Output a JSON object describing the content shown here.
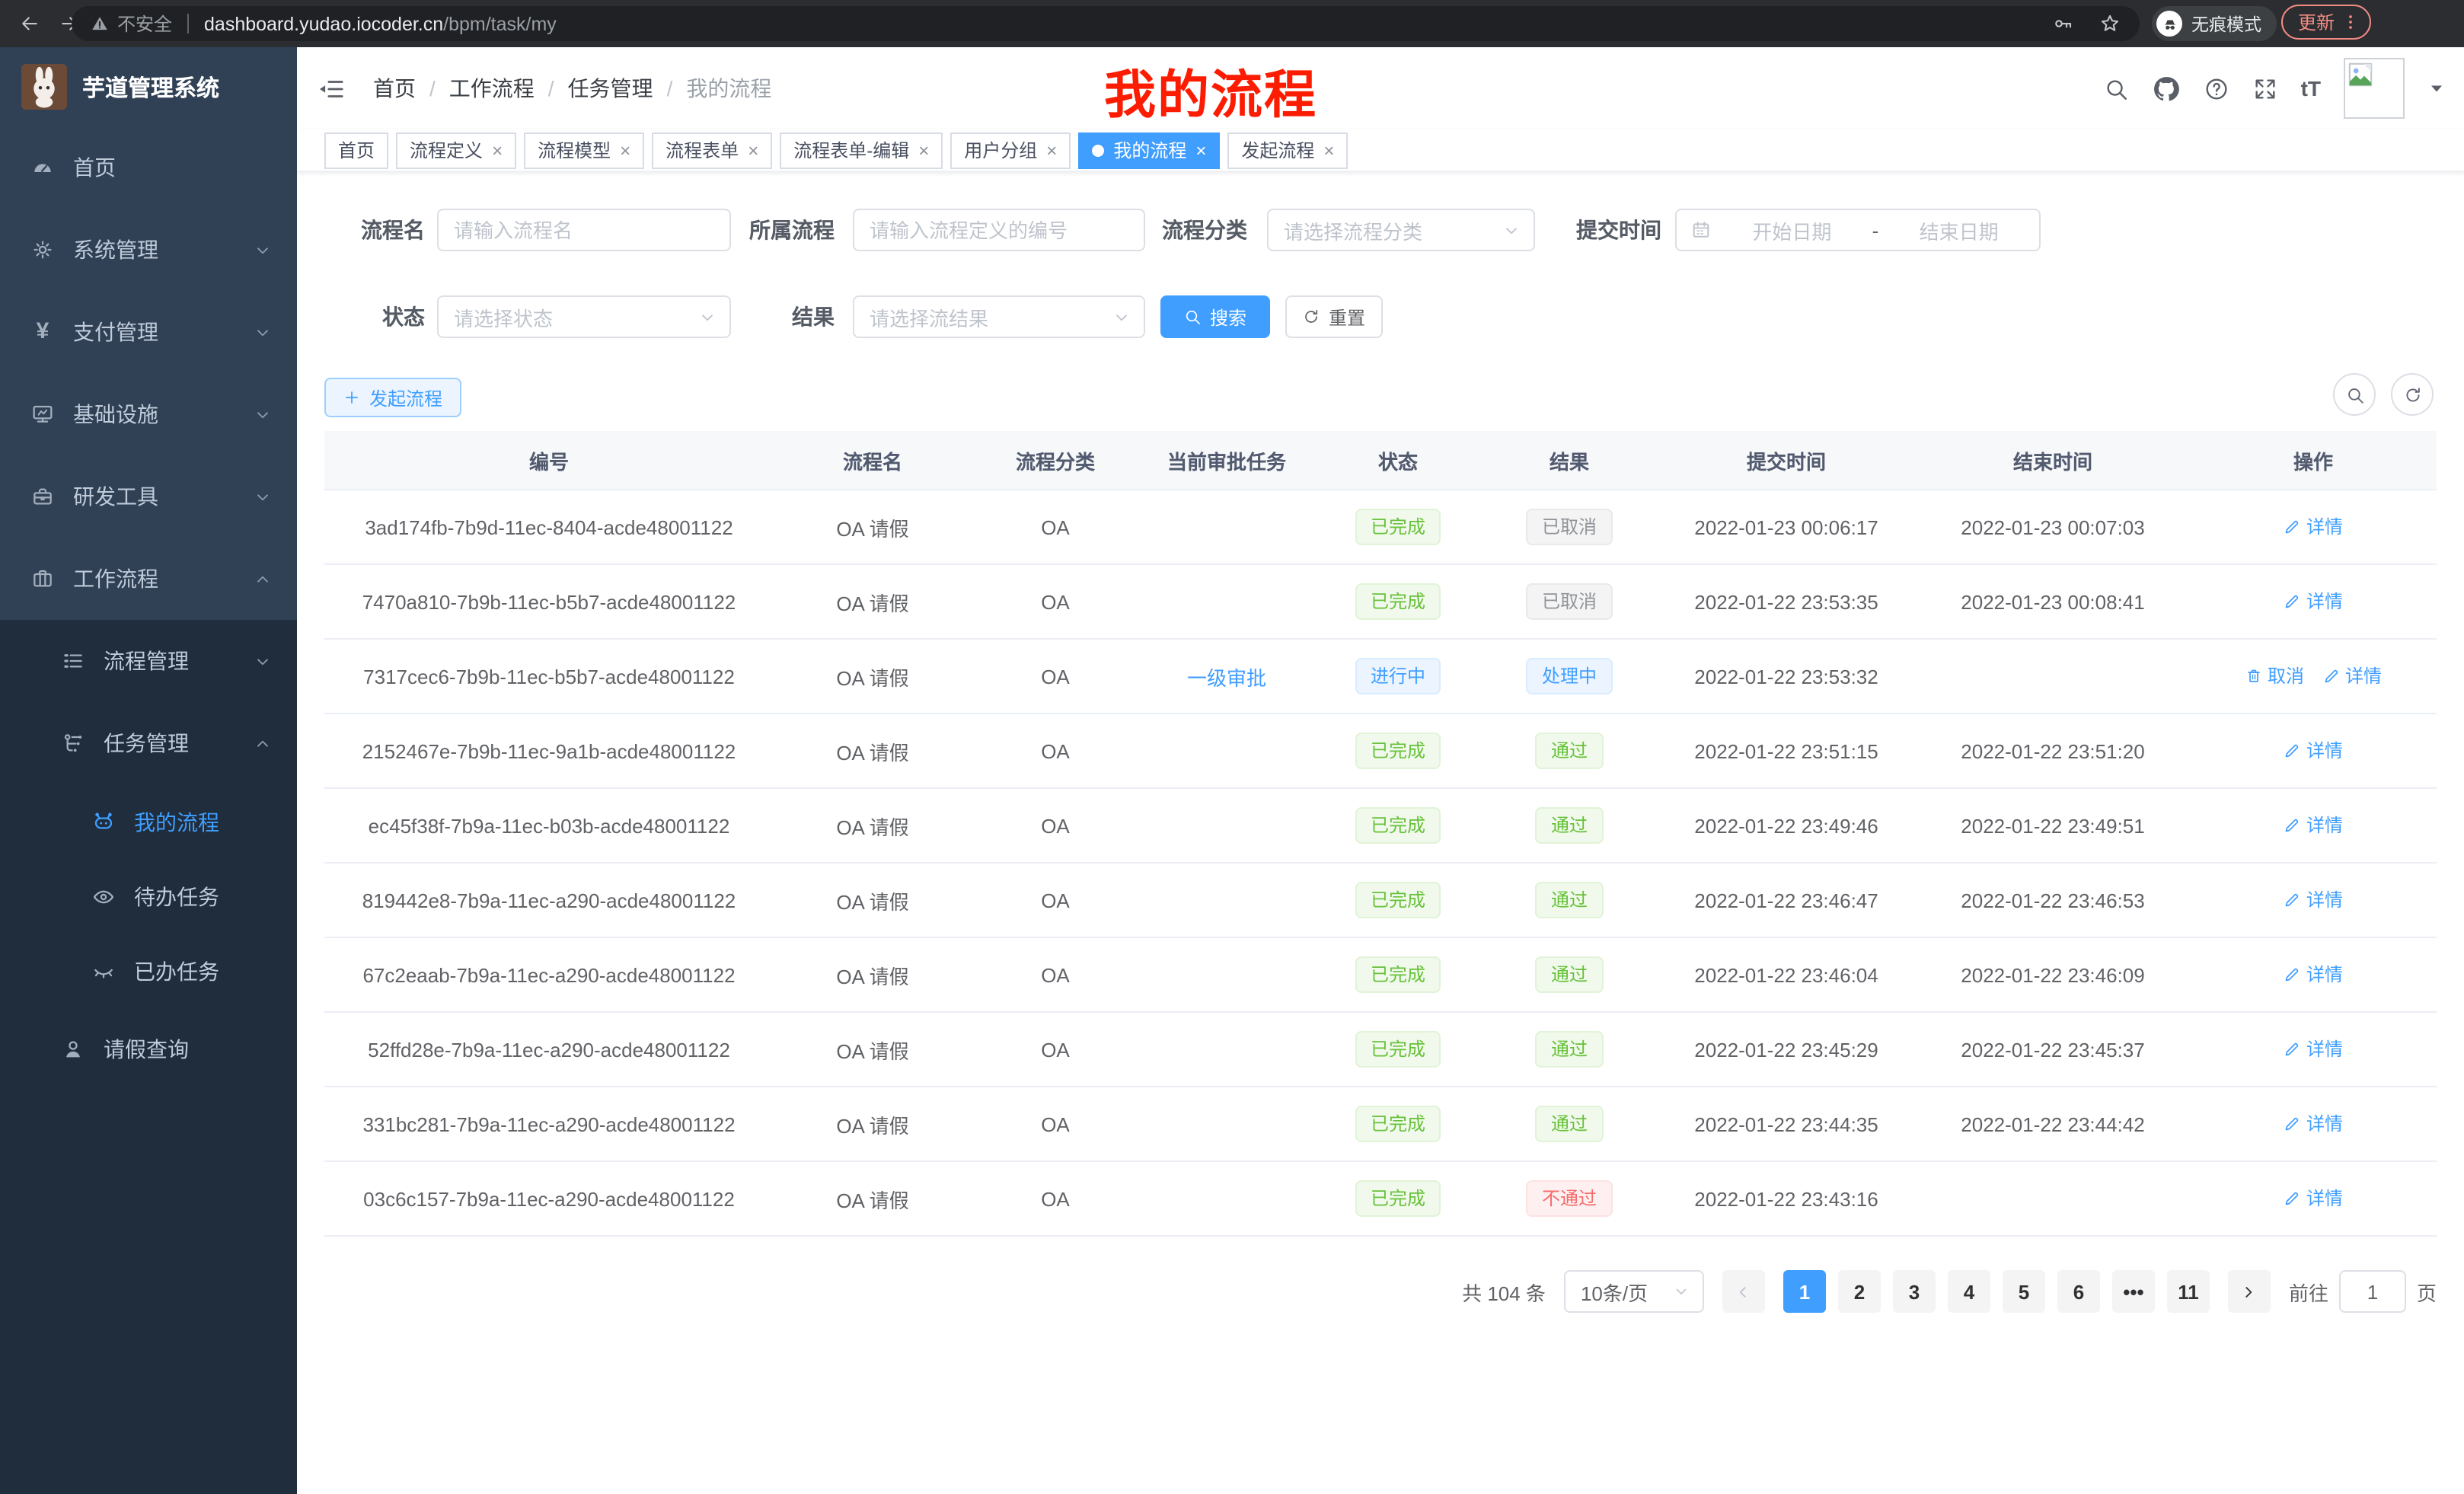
{
  "browser": {
    "security_label": "不安全",
    "url_host": "dashboard.yudao.iocoder.cn",
    "url_path": "/bpm/task/my",
    "incognito_label": "无痕模式",
    "update_label": "更新"
  },
  "sidebar": {
    "app_title": "芋道管理系统",
    "items": [
      {
        "key": "home",
        "label": "首页",
        "icon": "dashboard-icon",
        "level": 1,
        "section": "top",
        "chevron": "",
        "active": false
      },
      {
        "key": "system",
        "label": "系统管理",
        "icon": "gear-icon",
        "level": 1,
        "section": "top",
        "chevron": "down",
        "active": false
      },
      {
        "key": "payment",
        "label": "支付管理",
        "icon": "yen-icon",
        "level": 1,
        "section": "top",
        "chevron": "down",
        "active": false
      },
      {
        "key": "infrastructure",
        "label": "基础设施",
        "icon": "monitor-icon",
        "level": 1,
        "section": "top",
        "chevron": "down",
        "active": false
      },
      {
        "key": "devtools",
        "label": "研发工具",
        "icon": "toolbox-icon",
        "level": 1,
        "section": "top",
        "chevron": "down",
        "active": false
      },
      {
        "key": "workflow",
        "label": "工作流程",
        "icon": "briefcase-icon",
        "level": 1,
        "section": "top",
        "chevron": "up",
        "active": false
      },
      {
        "key": "process-mgmt",
        "label": "流程管理",
        "icon": "list-icon",
        "level": 2,
        "section": "sub",
        "chevron": "down",
        "active": false
      },
      {
        "key": "task-mgmt",
        "label": "任务管理",
        "icon": "flow-icon",
        "level": 2,
        "section": "sub",
        "chevron": "up",
        "active": false
      },
      {
        "key": "my-process",
        "label": "我的流程",
        "icon": "robot-icon",
        "level": 3,
        "section": "sub",
        "chevron": "",
        "active": true
      },
      {
        "key": "todo-tasks",
        "label": "待办任务",
        "icon": "eye-icon",
        "level": 3,
        "section": "sub",
        "chevron": "",
        "active": false
      },
      {
        "key": "done-tasks",
        "label": "已办任务",
        "icon": "eye-closed-icon",
        "level": 3,
        "section": "sub",
        "chevron": "",
        "active": false
      },
      {
        "key": "leave-query",
        "label": "请假查询",
        "icon": "user-icon",
        "level": 2,
        "section": "sub",
        "chevron": "",
        "active": false
      }
    ]
  },
  "header": {
    "breadcrumb": [
      "首页",
      "工作流程",
      "任务管理",
      "我的流程"
    ],
    "annotation": "我的流程"
  },
  "tabs": [
    {
      "key": "home",
      "label": "首页",
      "closable": false,
      "active": false
    },
    {
      "key": "process-definition",
      "label": "流程定义",
      "closable": true,
      "active": false
    },
    {
      "key": "process-model",
      "label": "流程模型",
      "closable": true,
      "active": false
    },
    {
      "key": "process-form",
      "label": "流程表单",
      "closable": true,
      "active": false
    },
    {
      "key": "process-form-edit",
      "label": "流程表单-编辑",
      "closable": true,
      "active": false
    },
    {
      "key": "user-group",
      "label": "用户分组",
      "closable": true,
      "active": false
    },
    {
      "key": "my-process",
      "label": "我的流程",
      "closable": true,
      "active": true
    },
    {
      "key": "start-process",
      "label": "发起流程",
      "closable": true,
      "active": false
    }
  ],
  "filters": {
    "name_label": "流程名",
    "name_placeholder": "请输入流程名",
    "definition_label": "所属流程",
    "definition_placeholder": "请输入流程定义的编号",
    "category_label": "流程分类",
    "category_placeholder": "请选择流程分类",
    "submit_time_label": "提交时间",
    "date_start_placeholder": "开始日期",
    "date_separator": "-",
    "date_end_placeholder": "结束日期",
    "status_label": "状态",
    "status_placeholder": "请选择状态",
    "result_label": "结果",
    "result_placeholder": "请选择流结果",
    "search_label": "搜索",
    "reset_label": "重置"
  },
  "toolbar": {
    "create_label": "发起流程"
  },
  "table": {
    "columns": [
      "编号",
      "流程名",
      "流程分类",
      "当前审批任务",
      "状态",
      "结果",
      "提交时间",
      "结束时间",
      "操作"
    ],
    "action_labels": {
      "detail": "详情",
      "cancel": "取消"
    },
    "rows": [
      {
        "id": "3ad174fb-7b9d-11ec-8404-acde48001122",
        "name": "OA 请假",
        "category": "OA",
        "task": "",
        "status": "已完成",
        "status_type": "success",
        "result": "已取消",
        "result_type": "info",
        "submit_time": "2022-01-23 00:06:17",
        "end_time": "2022-01-23 00:07:03",
        "actions": [
          "detail"
        ]
      },
      {
        "id": "7470a810-7b9b-11ec-b5b7-acde48001122",
        "name": "OA 请假",
        "category": "OA",
        "task": "",
        "status": "已完成",
        "status_type": "success",
        "result": "已取消",
        "result_type": "info",
        "submit_time": "2022-01-22 23:53:35",
        "end_time": "2022-01-23 00:08:41",
        "actions": [
          "detail"
        ]
      },
      {
        "id": "7317cec6-7b9b-11ec-b5b7-acde48001122",
        "name": "OA 请假",
        "category": "OA",
        "task": "一级审批",
        "status": "进行中",
        "status_type": "primary",
        "result": "处理中",
        "result_type": "primary",
        "submit_time": "2022-01-22 23:53:32",
        "end_time": "",
        "actions": [
          "cancel",
          "detail"
        ]
      },
      {
        "id": "2152467e-7b9b-11ec-9a1b-acde48001122",
        "name": "OA 请假",
        "category": "OA",
        "task": "",
        "status": "已完成",
        "status_type": "success",
        "result": "通过",
        "result_type": "success",
        "submit_time": "2022-01-22 23:51:15",
        "end_time": "2022-01-22 23:51:20",
        "actions": [
          "detail"
        ]
      },
      {
        "id": "ec45f38f-7b9a-11ec-b03b-acde48001122",
        "name": "OA 请假",
        "category": "OA",
        "task": "",
        "status": "已完成",
        "status_type": "success",
        "result": "通过",
        "result_type": "success",
        "submit_time": "2022-01-22 23:49:46",
        "end_time": "2022-01-22 23:49:51",
        "actions": [
          "detail"
        ]
      },
      {
        "id": "819442e8-7b9a-11ec-a290-acde48001122",
        "name": "OA 请假",
        "category": "OA",
        "task": "",
        "status": "已完成",
        "status_type": "success",
        "result": "通过",
        "result_type": "success",
        "submit_time": "2022-01-22 23:46:47",
        "end_time": "2022-01-22 23:46:53",
        "actions": [
          "detail"
        ]
      },
      {
        "id": "67c2eaab-7b9a-11ec-a290-acde48001122",
        "name": "OA 请假",
        "category": "OA",
        "task": "",
        "status": "已完成",
        "status_type": "success",
        "result": "通过",
        "result_type": "success",
        "submit_time": "2022-01-22 23:46:04",
        "end_time": "2022-01-22 23:46:09",
        "actions": [
          "detail"
        ]
      },
      {
        "id": "52ffd28e-7b9a-11ec-a290-acde48001122",
        "name": "OA 请假",
        "category": "OA",
        "task": "",
        "status": "已完成",
        "status_type": "success",
        "result": "通过",
        "result_type": "success",
        "submit_time": "2022-01-22 23:45:29",
        "end_time": "2022-01-22 23:45:37",
        "actions": [
          "detail"
        ]
      },
      {
        "id": "331bc281-7b9a-11ec-a290-acde48001122",
        "name": "OA 请假",
        "category": "OA",
        "task": "",
        "status": "已完成",
        "status_type": "success",
        "result": "通过",
        "result_type": "success",
        "submit_time": "2022-01-22 23:44:35",
        "end_time": "2022-01-22 23:44:42",
        "actions": [
          "detail"
        ]
      },
      {
        "id": "03c6c157-7b9a-11ec-a290-acde48001122",
        "name": "OA 请假",
        "category": "OA",
        "task": "",
        "status": "已完成",
        "status_type": "success",
        "result": "不通过",
        "result_type": "danger",
        "submit_time": "2022-01-22 23:43:16",
        "end_time": "",
        "actions": [
          "detail"
        ]
      }
    ]
  },
  "pagination": {
    "total_label": "共 104 条",
    "page_size_label": "10条/页",
    "pages": [
      "1",
      "2",
      "3",
      "4",
      "5",
      "6",
      "•••",
      "11"
    ],
    "active_page": "1",
    "goto_label": "前往",
    "goto_value": "1",
    "unit_label": "页"
  },
  "colors": {
    "accent": "#409eff",
    "success": "#67c23a",
    "info": "#909399",
    "danger": "#f56c6c",
    "sidebar_bg": "#304156",
    "submenu_bg": "#1f2d3d",
    "annotation": "#fb1c02"
  },
  "icons": {
    "browser": [
      "back-icon",
      "forward-icon",
      "reload-icon",
      "home-icon",
      "warning-icon",
      "key-icon",
      "star-icon",
      "incognito-icon",
      "more-vert-icon"
    ],
    "navbar": [
      "fold-icon",
      "search-icon",
      "github-icon",
      "help-icon",
      "fullscreen-icon",
      "fontsize-icon",
      "image-icon",
      "caret-down-icon"
    ],
    "controls": [
      "calendar-icon",
      "chevron-down-icon",
      "chevron-up-icon",
      "search-icon",
      "refresh-icon",
      "plus-icon",
      "edit-icon",
      "delete-icon",
      "chevron-left-icon",
      "chevron-right-icon"
    ]
  }
}
